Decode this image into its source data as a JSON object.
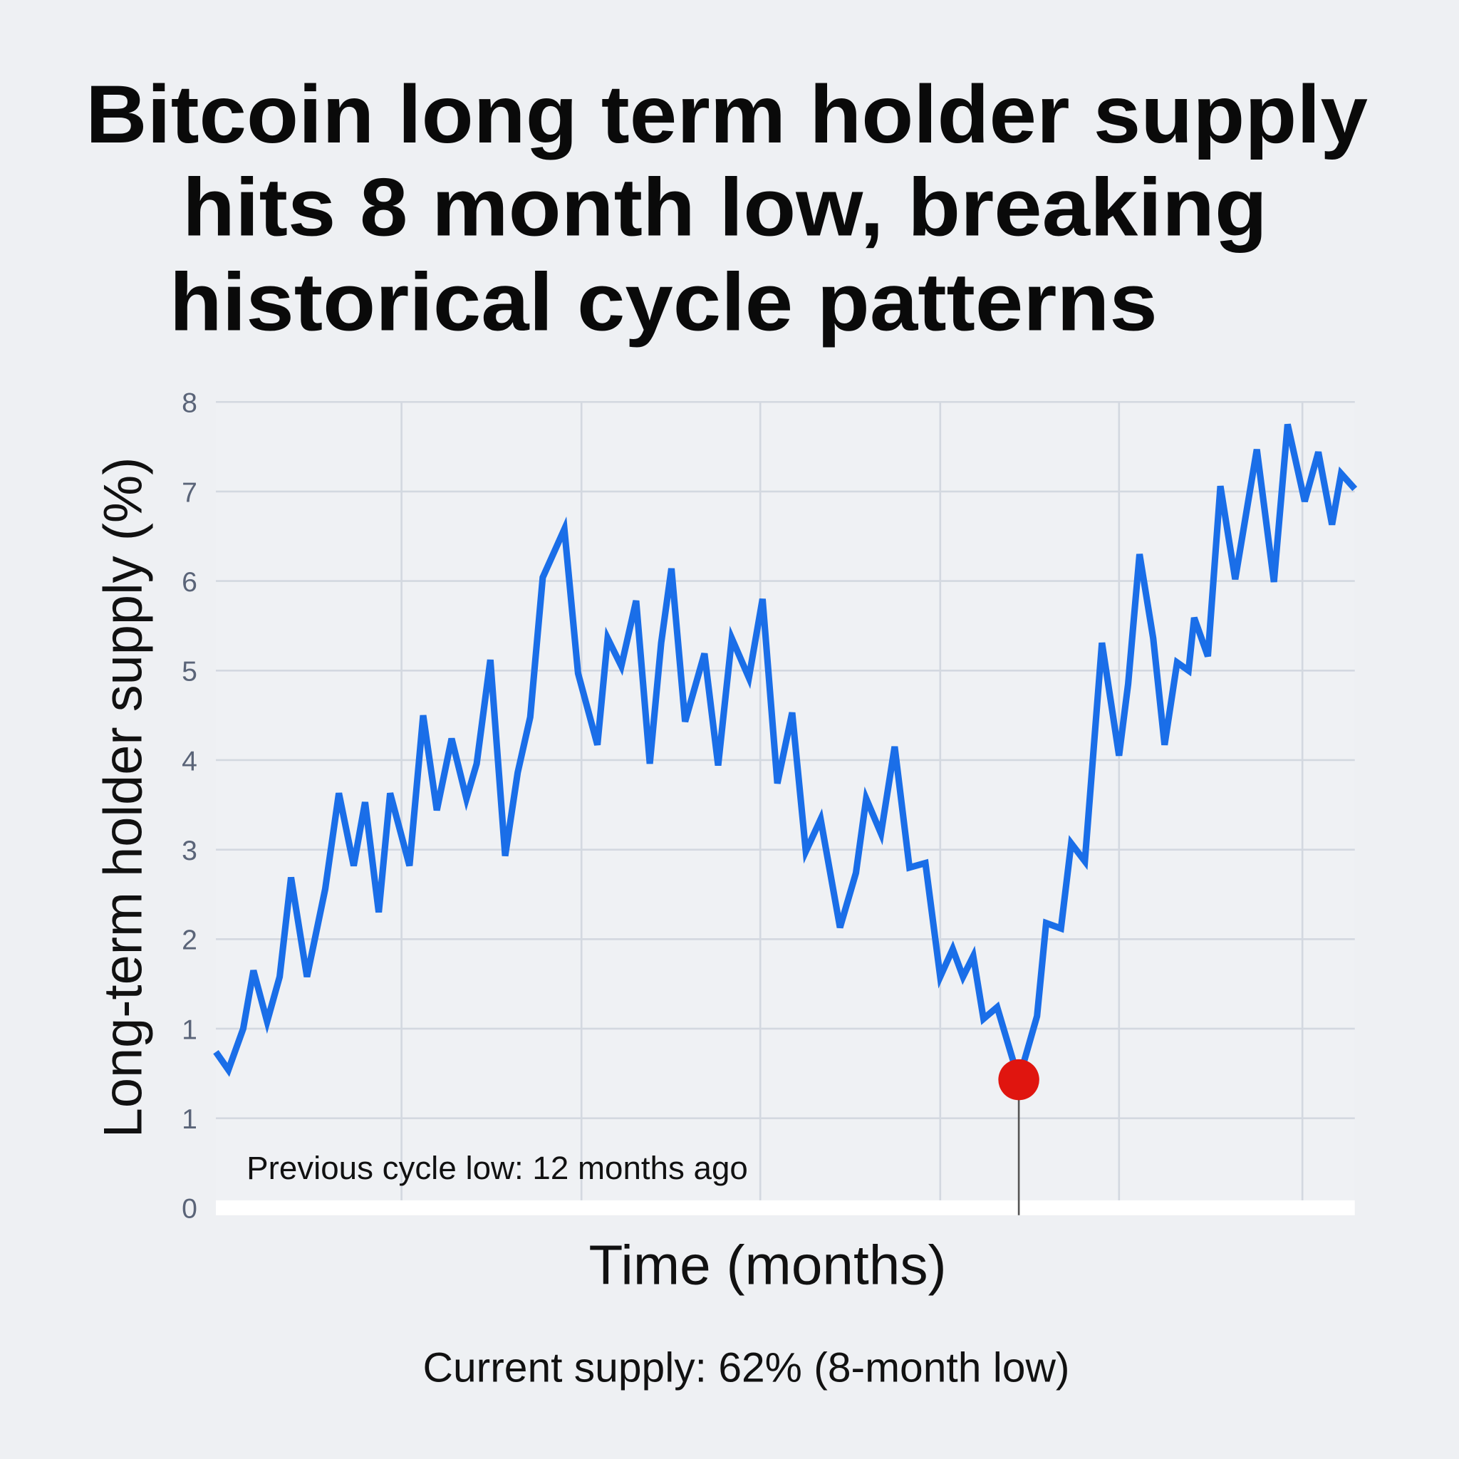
{
  "chart_data": {
    "type": "line",
    "title_lines": [
      "Bitcoin long term holder supply",
      "hits 8 month low, breaking",
      "historical cycle patterns"
    ],
    "xlabel": "Time (months)",
    "ylabel": "Long-term holder supply (%)",
    "y_tick_labels": [
      "0",
      "1",
      "1",
      "2",
      "3",
      "4",
      "5",
      "6",
      "7",
      "8"
    ],
    "y_note": "values are in y-tick position units (tick index 0-9), since printed tick labels repeat '1'",
    "ylim": [
      0,
      9
    ],
    "xlim": [
      0,
      100
    ],
    "grid": true,
    "series": [
      {
        "name": "Long-term holder supply",
        "color": "#1a6ee8",
        "x": [
          0,
          1.1,
          2.4,
          3.3,
          4.5,
          5.6,
          6.6,
          8.0,
          9.6,
          10.8,
          12.1,
          13.1,
          14.3,
          15.3,
          17.0,
          18.2,
          19.4,
          20.7,
          22.0,
          22.9,
          24.1,
          25.4,
          26.5,
          27.6,
          28.7,
          30.6,
          31.8,
          33.5,
          34.4,
          35.6,
          36.9,
          38.1,
          39.1,
          40.0,
          41.2,
          42.9,
          44.1,
          45.3,
          46.8,
          48.0,
          49.3,
          50.6,
          51.8,
          53.1,
          54.8,
          56.2,
          57.1,
          58.4,
          59.6,
          60.9,
          62.3,
          63.6,
          64.7,
          65.6,
          66.5,
          67.4,
          68.6,
          70.5,
          72.1,
          72.9,
          74.2,
          75.1,
          76.3,
          77.8,
          79.3,
          80.1,
          81.1,
          82.3,
          83.3,
          84.4,
          85.4,
          85.9,
          87.1,
          88.2,
          89.5,
          91.4,
          92.9,
          94.1,
          95.6,
          96.8,
          98.0,
          98.8,
          100
        ],
        "y": [
          1.74,
          1.54,
          2.0,
          2.65,
          2.08,
          2.58,
          3.69,
          2.58,
          3.56,
          4.63,
          3.82,
          4.53,
          3.3,
          4.63,
          3.82,
          5.5,
          4.44,
          5.24,
          4.57,
          4.96,
          6.12,
          3.93,
          4.86,
          5.48,
          7.04,
          7.58,
          5.97,
          5.17,
          6.36,
          6.05,
          6.78,
          4.96,
          6.31,
          7.14,
          5.43,
          6.19,
          4.94,
          6.36,
          5.92,
          6.8,
          4.74,
          5.53,
          3.98,
          4.34,
          3.13,
          3.74,
          4.57,
          4.18,
          5.15,
          3.8,
          3.85,
          2.58,
          2.89,
          2.58,
          2.81,
          2.11,
          2.24,
          1.43,
          2.14,
          3.18,
          3.12,
          4.07,
          3.87,
          6.31,
          5.05,
          5.85,
          7.3,
          6.36,
          5.17,
          6.09,
          6.0,
          6.59,
          6.16,
          8.06,
          7.02,
          8.47,
          6.99,
          8.75,
          7.89,
          8.44,
          7.63,
          8.2,
          8.03
        ]
      }
    ],
    "highlight": {
      "x": 70.5,
      "y": 1.43,
      "color": "#e0150f"
    },
    "annotations": [
      "Previous cycle low: 12 months ago",
      "Current supply: 62% (8-month low)"
    ]
  }
}
